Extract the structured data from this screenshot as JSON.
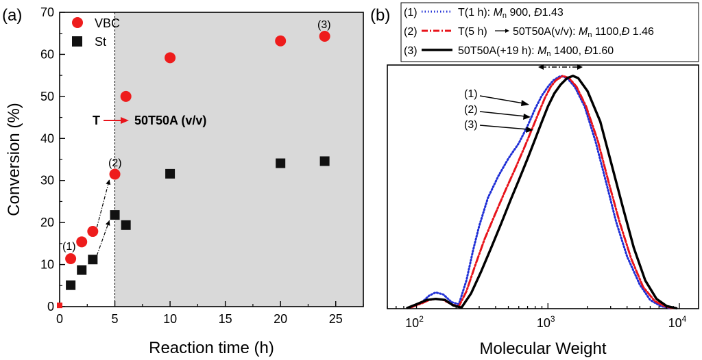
{
  "panel_a_label": "(a)",
  "panel_b_label": "(b)",
  "chart_data": [
    {
      "type": "scatter",
      "panel": "(a)",
      "xlabel": "Reaction time (h)",
      "ylabel": "Conversion (%)",
      "xlim": [
        0,
        27.5
      ],
      "ylim": [
        0,
        70
      ],
      "x_ticks": [
        "0",
        "5",
        "10",
        "15",
        "20",
        "25"
      ],
      "y_ticks": [
        "0",
        "10",
        "20",
        "30",
        "40",
        "50",
        "60",
        "70"
      ],
      "series": [
        {
          "name": "VBC",
          "color": "#ee1c1c",
          "marker": "circle",
          "x": [
            1,
            2,
            3,
            5,
            6,
            10,
            20,
            24
          ],
          "y": [
            11.4,
            15.4,
            17.9,
            31.5,
            50.0,
            59.2,
            63.2,
            64.3
          ]
        },
        {
          "name": "St",
          "color": "#111111",
          "marker": "square",
          "x": [
            1,
            2,
            3,
            5,
            6,
            10,
            20,
            24
          ],
          "y": [
            5.1,
            8.7,
            11.2,
            21.8,
            19.4,
            31.6,
            34.1,
            34.6
          ]
        }
      ],
      "origin_point": {
        "x": 0,
        "y": 0.3
      },
      "vertical_line_x": 5,
      "annotations": {
        "switch_from": "T",
        "switch_to": "50T50A (v/v)",
        "point_labels": [
          {
            "text": "(1)",
            "x": 1
          },
          {
            "text": "(2)",
            "x": 5
          },
          {
            "text": "(3)",
            "x": 24
          }
        ]
      }
    },
    {
      "type": "line",
      "panel": "(b)",
      "xlabel": "Molecular Weight",
      "x_scale": "log",
      "xlim": [
        60,
        14000
      ],
      "x_ticks": [
        {
          "value": 100,
          "base": "10",
          "exp": "2"
        },
        {
          "value": 1000,
          "base": "10",
          "exp": "3"
        },
        {
          "value": 10000,
          "base": "10",
          "exp": "4"
        }
      ],
      "ylim": [
        0,
        1.12
      ],
      "legend": [
        {
          "num": "(1)",
          "label": "T(1 h): ",
          "mn_sym": "M",
          "mn_sub": "n",
          "mn_val": " 900, ",
          "d_sym": "Đ",
          "d_val": "1.43"
        },
        {
          "num": "(2)",
          "label": "T(5 h)",
          "label2": "50T50A(v/v): ",
          "mn_sym": "M",
          "mn_sub": "n",
          "mn_val": " 1100,",
          "d_sym": "Đ",
          "d_val": " 1.46"
        },
        {
          "num": "(3)",
          "label": "50T50A(+19 h): ",
          "mn_sym": "M",
          "mn_sub": "n",
          "mn_val": " 1400, ",
          "d_sym": "Đ",
          "d_val": "1.60"
        }
      ],
      "curve_labels": [
        "(1)",
        "(2)",
        "(3)"
      ],
      "series": [
        {
          "name": "(1)",
          "color": "#1f2fd6",
          "style": "dotted",
          "x": [
            90,
            110,
            125,
            140,
            160,
            185,
            210,
            240,
            270,
            300,
            350,
            420,
            500,
            600,
            700,
            800,
            900,
            1000,
            1100,
            1250,
            1400,
            1600,
            1900,
            2300,
            2800,
            3300,
            4000,
            5000,
            6000,
            7200,
            8500
          ],
          "y": [
            0.005,
            0.03,
            0.06,
            0.075,
            0.065,
            0.03,
            0.02,
            0.13,
            0.27,
            0.38,
            0.51,
            0.61,
            0.69,
            0.76,
            0.84,
            0.92,
            0.98,
            1.02,
            1.05,
            1.07,
            1.06,
            1.02,
            0.93,
            0.77,
            0.57,
            0.4,
            0.24,
            0.11,
            0.04,
            0.012,
            0.002
          ]
        },
        {
          "name": "(2)",
          "color": "#e8141b",
          "style": "dashdot",
          "x": [
            90,
            110,
            125,
            140,
            160,
            185,
            210,
            240,
            280,
            330,
            400,
            480,
            560,
            650,
            750,
            850,
            950,
            1050,
            1150,
            1300,
            1450,
            1650,
            1950,
            2400,
            2900,
            3500,
            4300,
            5300,
            6500,
            7800,
            9000
          ],
          "y": [
            0.005,
            0.025,
            0.04,
            0.045,
            0.04,
            0.02,
            0.01,
            0.08,
            0.2,
            0.32,
            0.44,
            0.55,
            0.64,
            0.73,
            0.82,
            0.9,
            0.97,
            1.02,
            1.05,
            1.07,
            1.06,
            1.02,
            0.93,
            0.77,
            0.58,
            0.4,
            0.23,
            0.1,
            0.035,
            0.01,
            0.002
          ]
        },
        {
          "name": "(3)",
          "color": "#000000",
          "style": "solid",
          "x": [
            85,
            100,
            120,
            140,
            165,
            190,
            220,
            260,
            310,
            370,
            440,
            520,
            600,
            700,
            800,
            900,
            1000,
            1120,
            1250,
            1400,
            1550,
            1700,
            2000,
            2500,
            3000,
            3700,
            4500,
            5500,
            6700,
            8000,
            9500
          ],
          "y": [
            0.003,
            0.02,
            0.04,
            0.045,
            0.04,
            0.015,
            0.005,
            0.07,
            0.17,
            0.28,
            0.39,
            0.5,
            0.59,
            0.69,
            0.78,
            0.86,
            0.93,
            0.99,
            1.03,
            1.06,
            1.07,
            1.06,
            1.0,
            0.86,
            0.68,
            0.47,
            0.28,
            0.13,
            0.045,
            0.012,
            0.002
          ]
        }
      ]
    }
  ]
}
